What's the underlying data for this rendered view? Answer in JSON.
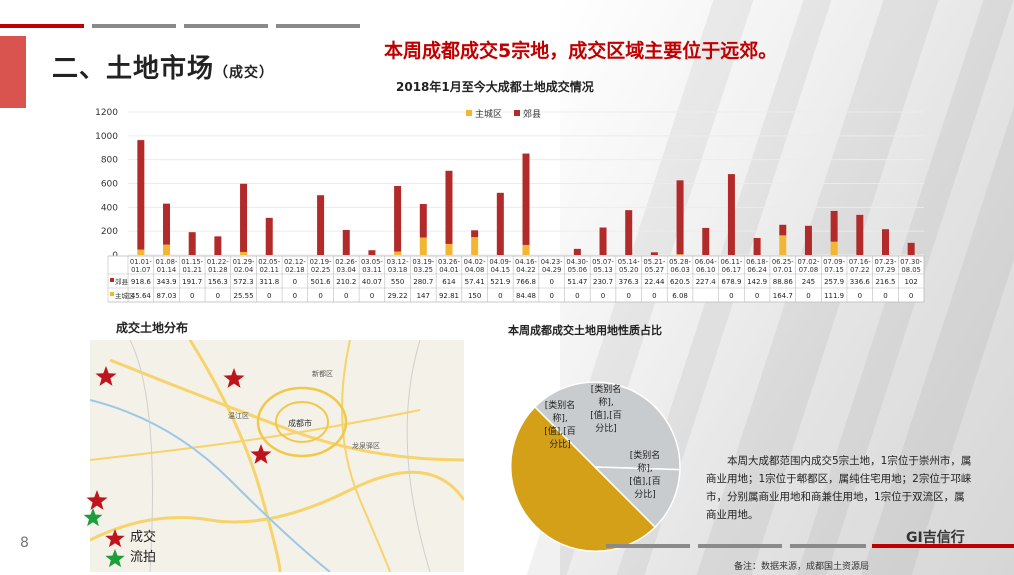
{
  "title": {
    "main": "二、土地市场",
    "sub": "（成交）"
  },
  "headline": "本周成都成交5宗地，成交区域主要位于远郊。",
  "colors": {
    "red": "#b22a2a",
    "gold": "#f2b632",
    "pie_gold": "#d4a017",
    "pie_gray": "#c9cccf",
    "accent": "#d9534f"
  },
  "chart_data": [
    {
      "type": "bar",
      "title": "2018年1月至今大成都土地成交情况",
      "stacked": true,
      "ylim": [
        0,
        1200
      ],
      "yticks": [
        0,
        200,
        400,
        600,
        800,
        1000,
        1200
      ],
      "legend_position": "top-right",
      "categories": [
        {
          "top": "01.01-",
          "bottom": "01.07"
        },
        {
          "top": "01.08-",
          "bottom": "01.14"
        },
        {
          "top": "01.15-",
          "bottom": "01.21"
        },
        {
          "top": "01.22-",
          "bottom": "01.28"
        },
        {
          "top": "01.29-",
          "bottom": "02.04"
        },
        {
          "top": "02.05-",
          "bottom": "02.11"
        },
        {
          "top": "02.12-",
          "bottom": "02.18"
        },
        {
          "top": "02.19-",
          "bottom": "02.25"
        },
        {
          "top": "02.26-",
          "bottom": "03.04"
        },
        {
          "top": "03.05-",
          "bottom": "03.11"
        },
        {
          "top": "03.12-",
          "bottom": "03.18"
        },
        {
          "top": "03.19-",
          "bottom": "03.25"
        },
        {
          "top": "03.26-",
          "bottom": "04.01"
        },
        {
          "top": "04.02-",
          "bottom": "04.08"
        },
        {
          "top": "04.09-",
          "bottom": "04.15"
        },
        {
          "top": "04.16-",
          "bottom": "04.22"
        },
        {
          "top": "04.23-",
          "bottom": "04.29"
        },
        {
          "top": "04.30-",
          "bottom": "05.06"
        },
        {
          "top": "05.07-",
          "bottom": "05.13"
        },
        {
          "top": "05.14-",
          "bottom": "05.20"
        },
        {
          "top": "05.21-",
          "bottom": "05.27"
        },
        {
          "top": "05.28-",
          "bottom": "06.03"
        },
        {
          "top": "06.04-",
          "bottom": "06.10"
        },
        {
          "top": "06.11-",
          "bottom": "06.17"
        },
        {
          "top": "06.18-",
          "bottom": "06.24"
        },
        {
          "top": "06.25-",
          "bottom": "07.01"
        },
        {
          "top": "07.02-",
          "bottom": "07.08"
        },
        {
          "top": "07.09-",
          "bottom": "07.15"
        },
        {
          "top": "07.16-",
          "bottom": "07.22"
        },
        {
          "top": "07.23-",
          "bottom": "07.29"
        },
        {
          "top": "07.30-",
          "bottom": "08.05"
        }
      ],
      "series": [
        {
          "name": "主城区",
          "color": "#f2b632",
          "values": [
            45.64,
            87.03,
            0,
            0,
            25.55,
            0,
            0,
            0,
            0,
            0,
            29.22,
            147,
            92.81,
            150,
            0,
            84.48,
            0,
            0,
            0,
            0,
            0,
            6.08,
            null,
            0,
            0,
            164.7,
            0,
            111.9,
            0,
            0,
            0
          ],
          "labels": [
            "45.64",
            "87.03",
            "0",
            "0",
            "25.55",
            "0",
            "0",
            "0",
            "0",
            "0",
            "29.22",
            "147",
            "92.81",
            "150",
            "0",
            "84.48",
            "0",
            "0",
            "0",
            "0",
            "0",
            "6.08",
            "",
            "0",
            "0",
            "164.7",
            "0",
            "111.9",
            "0",
            "0",
            "0"
          ]
        },
        {
          "name": "郊县",
          "color": "#b22a2a",
          "values": [
            918.6,
            343.9,
            191.7,
            156.3,
            572.3,
            311.8,
            0,
            501.6,
            210.2,
            40.07,
            550,
            280.7,
            614,
            57.41,
            521.9,
            766.8,
            0,
            51.47,
            230.7,
            376.3,
            22.44,
            620.5,
            227.4,
            678.9,
            142.9,
            88.86,
            245,
            257.9,
            336.6,
            216.5,
            102
          ],
          "labels": [
            "918.6",
            "343.9",
            "191.7",
            "156.3",
            "572.3",
            "311.8",
            "0",
            "501.6",
            "210.2",
            "40.07",
            "550",
            "280.7",
            "614",
            "57.41",
            "521.9",
            "766.8",
            "0",
            "51.47",
            "230.7",
            "376.3",
            "22.44",
            "620.5",
            "227.4",
            "678.9",
            "142.9",
            "88.86",
            "245",
            "257.9",
            "336.6",
            "216.5",
            "102"
          ]
        }
      ]
    },
    {
      "type": "pie",
      "title": "本周成都成交土地用地性质占比",
      "slices": [
        {
          "label_lines": [
            "[类别名",
            "称],",
            "[值],[百",
            "分比]"
          ],
          "value": 0.5,
          "color": "#d4a017"
        },
        {
          "label_lines": [
            "[类别名",
            "称],",
            "[值],[百",
            "分比]"
          ],
          "value": 0.38,
          "color": "#c9cccf"
        },
        {
          "label_lines": [
            "[类别名",
            "称],",
            "[值],[百",
            "分比]"
          ],
          "value": 0.12,
          "color": "#c9cccf"
        }
      ]
    }
  ],
  "map": {
    "title": "成交土地分布",
    "places": [
      "成都市",
      "温江区",
      "新都区",
      "龙泉驿区"
    ],
    "legend": [
      {
        "label": "成交",
        "color": "#c0141c"
      },
      {
        "label": "流拍",
        "color": "#1e9e3a"
      }
    ]
  },
  "description": "本周大成都范围内成交5宗土地，1宗位于崇州市，属商业用地；1宗位于郫都区，属纯住宅用地；2宗位于邛崃市，分别属商业用地和商兼住用地，1宗位于双流区，属商业用地。",
  "page_number": "8",
  "logo": "GI吉信行",
  "note": "备注：数据来源，成都国土资源局"
}
